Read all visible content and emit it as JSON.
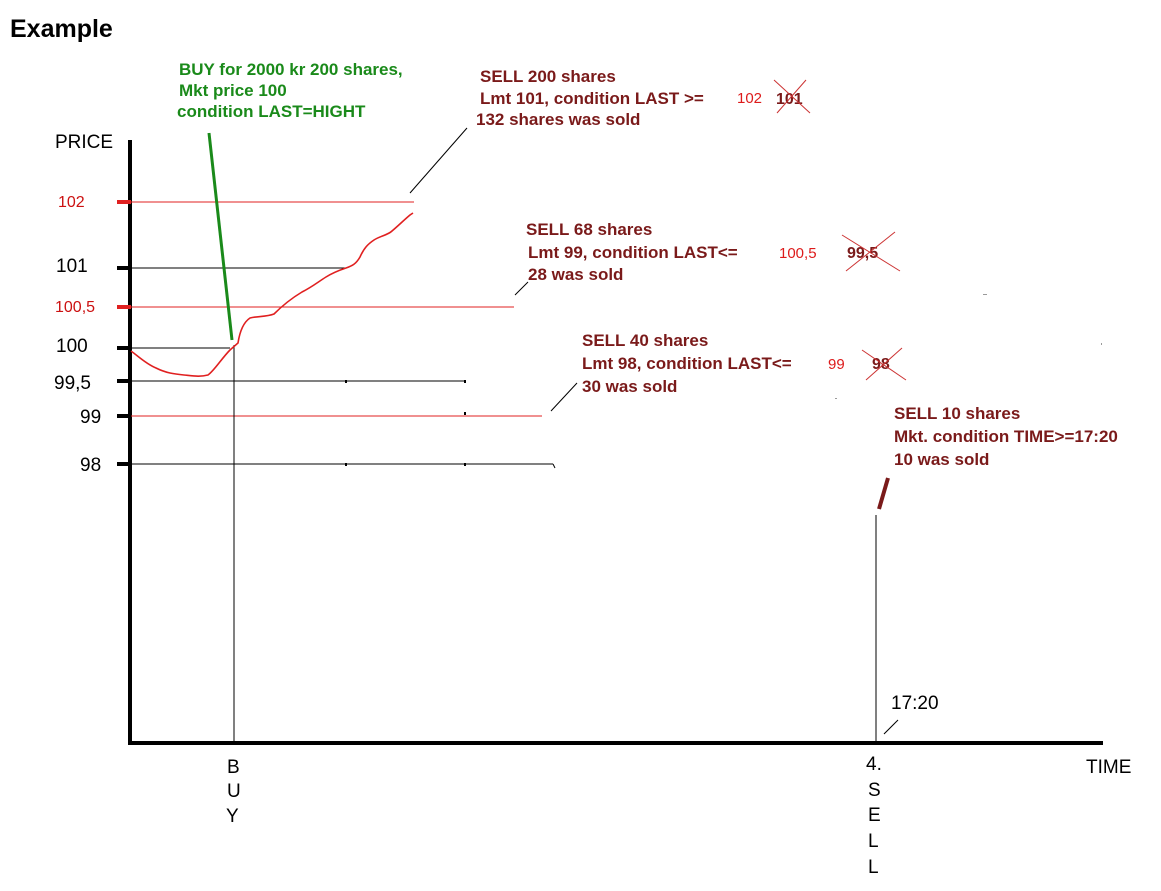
{
  "title": "Example",
  "axes": {
    "y_label": "PRICE",
    "x_label": "TIME"
  },
  "y_ticks": [
    {
      "label": "102",
      "value": 102,
      "color": "#cc1111"
    },
    {
      "label": "101",
      "value": 101,
      "color": "#000000"
    },
    {
      "label": "100,5",
      "value": 100.5,
      "color": "#cc1111"
    },
    {
      "label": "100",
      "value": 100,
      "color": "#000000"
    },
    {
      "label": "99,5",
      "value": 99.5,
      "color": "#000000"
    },
    {
      "label": "99",
      "value": 99,
      "color": "#000000"
    },
    {
      "label": "98",
      "value": 98,
      "color": "#000000"
    }
  ],
  "buy": {
    "line1": "BUY for 2000 kr 200 shares,",
    "line2": "Mkt price 100",
    "line3": "condition LAST=HIGHT",
    "axis_letters": [
      "B",
      "U",
      "Y"
    ],
    "color": "#1a8a1a"
  },
  "sell1": {
    "line1": "SELL 200 shares",
    "line2": "Lmt 101, condition LAST >=",
    "value_new": "102",
    "value_old": "101",
    "line3": "132 shares was sold"
  },
  "sell2": {
    "line1": "SELL 68 shares",
    "line2": "Lmt 99, condition LAST<=",
    "value_new": "100,5",
    "value_old": "99,5",
    "line3": "28 was sold"
  },
  "sell3": {
    "line1": "SELL 40 shares",
    "line2": "Lmt 98, condition LAST<=",
    "value_new": "99",
    "value_old": "98",
    "line3": "30 was sold"
  },
  "sell4": {
    "line1": "SELL 10 shares",
    "line2": "Mkt. condition TIME>=17:20",
    "line3": "10 was sold",
    "time_label": "17:20",
    "axis_letters": [
      "4.",
      "S",
      "E",
      "L",
      "L"
    ]
  },
  "colors": {
    "annotation": "#7a1a1a",
    "red_line": "#e02020",
    "price_curve": "#e02020"
  }
}
